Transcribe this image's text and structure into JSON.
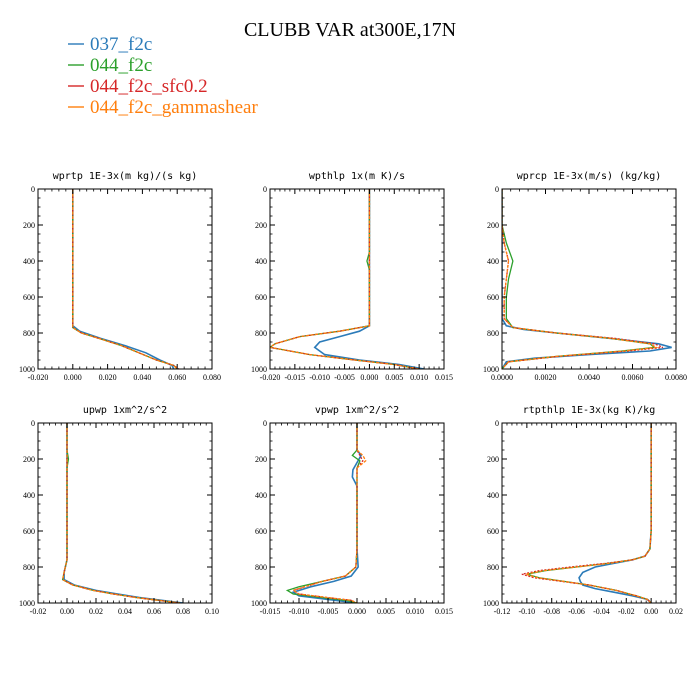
{
  "figure": {
    "title": "CLUBB VAR at300E,17N"
  },
  "legend": {
    "placement": "top-left",
    "entries": [
      {
        "name": "037_f2c",
        "color": "#2b7bb9"
      },
      {
        "name": "044_f2c",
        "color": "#2ca02c"
      },
      {
        "name": "044_f2c_sfc0.2",
        "color": "#d62728"
      },
      {
        "name": "044_f2c_gammashear",
        "color": "#ff7f0e"
      }
    ]
  },
  "chart_data": [
    {
      "type": "line",
      "title": "wprtp  1E-3x(m kg)/(s kg)",
      "xlim": [
        -0.02,
        0.08
      ],
      "ylim": [
        1000,
        0
      ],
      "xticks": [
        "-0.020",
        "0.000",
        "0.020",
        "0.040",
        "0.060",
        "0.080"
      ],
      "yticks": [
        "0",
        "200",
        "400",
        "600",
        "800",
        "1000"
      ],
      "series": [
        {
          "name": "037_f2c",
          "y": [
            0,
            200,
            400,
            600,
            700,
            760,
            790,
            830,
            870,
            910,
            950,
            980,
            1000
          ],
          "x": [
            0.0,
            0.0,
            0.0,
            0.0,
            0.0,
            0.0,
            0.004,
            0.016,
            0.03,
            0.042,
            0.05,
            0.057,
            0.058
          ]
        },
        {
          "name": "044_f2c",
          "y": [
            0,
            200,
            400,
            600,
            700,
            770,
            800,
            830,
            870,
            910,
            950,
            980,
            1000
          ],
          "x": [
            0.0,
            0.0,
            0.0,
            0.0,
            0.0,
            0.0,
            0.005,
            0.015,
            0.028,
            0.038,
            0.048,
            0.058,
            0.06
          ]
        },
        {
          "name": "044_f2c_sfc0.2",
          "y": [
            0,
            200,
            400,
            600,
            700,
            770,
            800,
            830,
            870,
            910,
            950,
            980,
            1000
          ],
          "x": [
            0.0,
            0.0,
            0.0,
            0.0,
            0.0,
            0.0,
            0.005,
            0.015,
            0.028,
            0.038,
            0.048,
            0.058,
            0.061
          ]
        },
        {
          "name": "044_f2c_gammashear",
          "y": [
            0,
            200,
            400,
            600,
            700,
            770,
            800,
            830,
            870,
            910,
            950,
            980,
            1000
          ],
          "x": [
            0.0,
            0.0,
            0.0,
            0.0,
            0.0,
            0.0,
            0.005,
            0.015,
            0.028,
            0.038,
            0.048,
            0.058,
            0.06
          ]
        }
      ]
    },
    {
      "type": "line",
      "title": "wpthlp  1x(m K)/s",
      "xlim": [
        -0.02,
        0.015
      ],
      "ylim": [
        1000,
        0
      ],
      "xticks": [
        "-0.020",
        "-0.015",
        "-0.010",
        "-0.005",
        "0.000",
        "0.005",
        "0.010",
        "0.015"
      ],
      "yticks": [
        "0",
        "200",
        "400",
        "600",
        "800",
        "1000"
      ],
      "series": [
        {
          "name": "037_f2c",
          "y": [
            0,
            200,
            350,
            450,
            600,
            760,
            790,
            820,
            850,
            880,
            920,
            950,
            975,
            1000
          ],
          "x": [
            0.0,
            0.0,
            0.0,
            0.0,
            0.0,
            0.0,
            -0.002,
            -0.006,
            -0.01,
            -0.011,
            -0.009,
            -0.002,
            0.006,
            0.011
          ]
        },
        {
          "name": "044_f2c",
          "y": [
            0,
            200,
            350,
            400,
            450,
            600,
            760,
            790,
            820,
            860,
            880,
            920,
            950,
            975,
            1000
          ],
          "x": [
            0.0,
            0.0,
            0.0,
            -0.0005,
            0.0,
            0.0,
            0.0,
            -0.006,
            -0.014,
            -0.019,
            -0.02,
            -0.012,
            -0.003,
            0.005,
            0.01
          ]
        },
        {
          "name": "044_f2c_sfc0.2",
          "y": [
            0,
            200,
            350,
            450,
            600,
            760,
            790,
            820,
            860,
            880,
            920,
            950,
            975,
            1000
          ],
          "x": [
            0.0,
            0.0,
            0.0,
            0.0,
            0.0,
            0.0,
            -0.006,
            -0.014,
            -0.019,
            -0.02,
            -0.012,
            -0.003,
            0.005,
            0.01
          ]
        },
        {
          "name": "044_f2c_gammashear",
          "y": [
            0,
            200,
            350,
            450,
            600,
            760,
            790,
            820,
            860,
            880,
            920,
            950,
            975,
            1000
          ],
          "x": [
            0.0,
            0.0,
            0.0,
            0.0,
            0.0,
            0.0,
            -0.006,
            -0.014,
            -0.019,
            -0.02,
            -0.012,
            -0.003,
            0.005,
            0.01
          ]
        }
      ]
    },
    {
      "type": "line",
      "title": "wprcp  1E-3x(m/s) (kg/kg)",
      "xlim": [
        0.0,
        0.008
      ],
      "ylim": [
        1000,
        0
      ],
      "xticks": [
        "0.0000",
        "0.0020",
        "0.0040",
        "0.0060",
        "0.0080"
      ],
      "yticks": [
        "0",
        "200",
        "400",
        "600",
        "800",
        "1000"
      ],
      "series": [
        {
          "name": "037_f2c",
          "y": [
            0,
            200,
            400,
            600,
            720,
            760,
            780,
            800,
            830,
            860,
            880,
            900,
            920,
            940,
            960,
            1000
          ],
          "x": [
            0.0,
            0.0,
            0.0,
            0.0,
            0.0,
            0.0002,
            0.001,
            0.0025,
            0.005,
            0.0072,
            0.0078,
            0.0068,
            0.004,
            0.0015,
            0.0002,
            0.0
          ]
        },
        {
          "name": "044_f2c",
          "y": [
            0,
            200,
            300,
            400,
            500,
            600,
            720,
            770,
            800,
            830,
            860,
            880,
            900,
            930,
            960,
            1000
          ],
          "x": [
            0.0,
            0.0,
            0.0002,
            0.0005,
            0.0003,
            0.0002,
            0.0002,
            0.0005,
            0.0025,
            0.005,
            0.0068,
            0.007,
            0.0055,
            0.0025,
            0.0003,
            0.0
          ]
        },
        {
          "name": "044_f2c_sfc0.2",
          "y": [
            0,
            200,
            300,
            400,
            500,
            600,
            720,
            770,
            800,
            830,
            860,
            880,
            900,
            930,
            960,
            1000
          ],
          "x": [
            0.0,
            0.0,
            0.0001,
            0.0003,
            0.0002,
            0.0001,
            0.0001,
            0.0005,
            0.0025,
            0.0052,
            0.007,
            0.0074,
            0.0058,
            0.0026,
            0.0003,
            0.0
          ]
        },
        {
          "name": "044_f2c_gammashear",
          "y": [
            0,
            200,
            300,
            400,
            500,
            600,
            720,
            770,
            800,
            830,
            860,
            880,
            900,
            930,
            960,
            1000
          ],
          "x": [
            0.0,
            0.0,
            0.0001,
            0.0003,
            0.0002,
            0.0001,
            0.0001,
            0.0005,
            0.0025,
            0.005,
            0.0068,
            0.0071,
            0.0056,
            0.0025,
            0.0003,
            0.0
          ]
        }
      ]
    },
    {
      "type": "line",
      "title": "upwp  1xm^2/s^2",
      "xlim": [
        -0.02,
        0.1
      ],
      "ylim": [
        1000,
        0
      ],
      "xticks": [
        "-0.02",
        "0.00",
        "0.02",
        "0.04",
        "0.06",
        "0.08",
        "0.10"
      ],
      "yticks": [
        "0",
        "200",
        "400",
        "600",
        "800",
        "1000"
      ],
      "series": [
        {
          "name": "037_f2c",
          "y": [
            0,
            200,
            400,
            600,
            760,
            830,
            870,
            900,
            930,
            950,
            970,
            990,
            1000
          ],
          "x": [
            0.0,
            0.0,
            0.0,
            0.0,
            0.0,
            -0.002,
            -0.002,
            0.005,
            0.02,
            0.035,
            0.05,
            0.07,
            0.08
          ]
        },
        {
          "name": "044_f2c",
          "y": [
            0,
            150,
            200,
            250,
            400,
            600,
            760,
            830,
            870,
            900,
            930,
            950,
            970,
            990,
            1000
          ],
          "x": [
            0.0,
            0.0,
            0.001,
            0.0,
            0.0,
            0.0,
            0.0,
            -0.002,
            -0.003,
            0.004,
            0.018,
            0.032,
            0.048,
            0.068,
            0.078
          ]
        },
        {
          "name": "044_f2c_sfc0.2",
          "y": [
            0,
            200,
            400,
            600,
            760,
            830,
            870,
            900,
            930,
            950,
            970,
            990,
            1000
          ],
          "x": [
            0.0,
            0.0,
            0.0,
            0.0,
            0.0,
            -0.002,
            -0.003,
            0.004,
            0.018,
            0.032,
            0.048,
            0.068,
            0.078
          ]
        },
        {
          "name": "044_f2c_gammashear",
          "y": [
            0,
            200,
            400,
            600,
            760,
            830,
            870,
            900,
            930,
            950,
            970,
            990,
            1000
          ],
          "x": [
            0.0,
            0.0,
            0.0,
            0.0,
            0.0,
            -0.002,
            -0.003,
            0.004,
            0.018,
            0.032,
            0.048,
            0.068,
            0.078
          ]
        }
      ]
    },
    {
      "type": "line",
      "title": "vpwp  1xm^2/s^2",
      "xlim": [
        -0.015,
        0.015
      ],
      "ylim": [
        1000,
        0
      ],
      "xticks": [
        "-0.015",
        "-0.010",
        "-0.005",
        "0.000",
        "0.005",
        "0.010",
        "0.015"
      ],
      "yticks": [
        "0",
        "200",
        "400",
        "600",
        "800",
        "1000"
      ],
      "series": [
        {
          "name": "037_f2c",
          "y": [
            0,
            150,
            180,
            220,
            260,
            300,
            350,
            500,
            700,
            800,
            850,
            880,
            910,
            940,
            960,
            980,
            1000
          ],
          "x": [
            0.0,
            0.0,
            0.0007,
            0.0,
            -0.0007,
            -0.0008,
            0.0,
            0.0,
            0.0,
            0.0002,
            -0.001,
            -0.004,
            -0.008,
            -0.011,
            -0.01,
            -0.005,
            0.0
          ]
        },
        {
          "name": "044_f2c",
          "y": [
            0,
            150,
            180,
            210,
            250,
            300,
            500,
            700,
            800,
            850,
            880,
            910,
            930,
            950,
            970,
            985,
            1000
          ],
          "x": [
            0.0,
            0.0,
            -0.0008,
            0.0005,
            0.0,
            0.0,
            0.0,
            0.0,
            -0.0002,
            -0.002,
            -0.006,
            -0.01,
            -0.012,
            -0.011,
            -0.006,
            -0.002,
            0.0
          ]
        },
        {
          "name": "044_f2c_sfc0.2",
          "y": [
            0,
            150,
            180,
            210,
            250,
            300,
            500,
            700,
            800,
            850,
            880,
            910,
            930,
            950,
            970,
            985,
            1000
          ],
          "x": [
            0.0,
            0.0,
            0.0005,
            0.001,
            0.0,
            0.0,
            0.0,
            0.0,
            -0.0002,
            -0.002,
            -0.006,
            -0.009,
            -0.011,
            -0.01,
            -0.005,
            -0.001,
            0.0
          ]
        },
        {
          "name": "044_f2c_gammashear",
          "y": [
            0,
            150,
            180,
            210,
            250,
            300,
            500,
            700,
            800,
            850,
            880,
            910,
            930,
            950,
            970,
            985,
            1000
          ],
          "x": [
            0.0,
            0.0,
            0.001,
            0.0015,
            0.0,
            0.0,
            0.0,
            0.0,
            -0.0002,
            -0.002,
            -0.006,
            -0.009,
            -0.011,
            -0.01,
            -0.005,
            -0.001,
            0.0
          ]
        }
      ]
    },
    {
      "type": "line",
      "title": "rtpthlp  1E-3x(kg K)/kg",
      "xlim": [
        -0.12,
        0.02
      ],
      "ylim": [
        1000,
        0
      ],
      "xticks": [
        "-0.12",
        "-0.10",
        "-0.08",
        "-0.06",
        "-0.04",
        "-0.02",
        "0.00",
        "0.02"
      ],
      "yticks": [
        "0",
        "200",
        "400",
        "600",
        "800",
        "1000"
      ],
      "series": [
        {
          "name": "037_f2c",
          "y": [
            0,
            200,
            400,
            600,
            700,
            740,
            760,
            780,
            800,
            830,
            860,
            880,
            900,
            920,
            940,
            960,
            980,
            1000
          ],
          "x": [
            0.0,
            0.0,
            0.0,
            0.0,
            -0.001,
            -0.005,
            -0.015,
            -0.03,
            -0.045,
            -0.055,
            -0.058,
            -0.057,
            -0.055,
            -0.045,
            -0.03,
            -0.015,
            -0.003,
            0.0
          ]
        },
        {
          "name": "044_f2c",
          "y": [
            0,
            200,
            400,
            600,
            700,
            740,
            760,
            780,
            800,
            820,
            840,
            860,
            880,
            900,
            930,
            960,
            980,
            1000
          ],
          "x": [
            0.0,
            0.0,
            0.0,
            0.0,
            -0.001,
            -0.005,
            -0.015,
            -0.035,
            -0.06,
            -0.085,
            -0.1,
            -0.09,
            -0.07,
            -0.05,
            -0.028,
            -0.012,
            -0.003,
            0.0
          ]
        },
        {
          "name": "044_f2c_sfc0.2",
          "y": [
            0,
            200,
            400,
            600,
            700,
            740,
            760,
            780,
            800,
            820,
            840,
            860,
            880,
            900,
            930,
            960,
            980,
            1000
          ],
          "x": [
            0.0,
            0.0,
            0.0,
            0.0,
            -0.001,
            -0.005,
            -0.015,
            -0.037,
            -0.065,
            -0.09,
            -0.104,
            -0.094,
            -0.072,
            -0.05,
            -0.028,
            -0.012,
            -0.003,
            0.0
          ]
        },
        {
          "name": "044_f2c_gammashear",
          "y": [
            0,
            200,
            400,
            600,
            700,
            740,
            760,
            780,
            800,
            820,
            840,
            860,
            880,
            900,
            930,
            960,
            980,
            1000
          ],
          "x": [
            0.0,
            0.0,
            0.0,
            0.0,
            -0.001,
            -0.005,
            -0.015,
            -0.034,
            -0.06,
            -0.086,
            -0.101,
            -0.091,
            -0.07,
            -0.05,
            -0.028,
            -0.012,
            -0.003,
            0.0
          ]
        }
      ]
    }
  ]
}
